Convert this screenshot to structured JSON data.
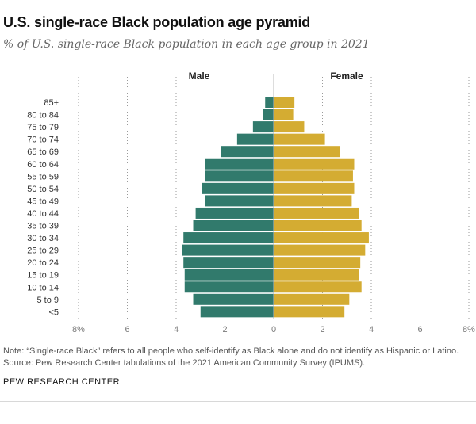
{
  "title": "U.S. single-race Black population age pyramid",
  "subtitle": "% of U.S. single-race Black population in each age group in 2021",
  "notes": [
    "Note: “Single-race Black” refers to all people who self-identify as Black alone and do not identify as Hispanic or Latino.",
    "Source: Pew Research Center tabulations of the 2021 American Community Survey (IPUMS)."
  ],
  "credit": "PEW RESEARCH CENTER",
  "chart_data": {
    "type": "bar",
    "orientation": "horizontal-pyramid",
    "categories": [
      "85+",
      "80 to 84",
      "75 to 79",
      "70 to 74",
      "65 to 69",
      "60 to 64",
      "55 to 59",
      "50 to 54",
      "45 to 49",
      "40 to 44",
      "35 to 39",
      "30 to 34",
      "25 to 29",
      "20 to 24",
      "15 to 19",
      "10 to 14",
      "5 to 9",
      "<5"
    ],
    "series": [
      {
        "name": "Male",
        "color": "#317a6c",
        "values": [
          0.35,
          0.45,
          0.85,
          1.5,
          2.15,
          2.8,
          2.8,
          2.95,
          2.8,
          3.2,
          3.3,
          3.7,
          3.75,
          3.7,
          3.65,
          3.65,
          3.3,
          3.0
        ]
      },
      {
        "name": "Female",
        "color": "#d4ac32",
        "values": [
          0.85,
          0.8,
          1.25,
          2.1,
          2.7,
          3.3,
          3.25,
          3.3,
          3.2,
          3.5,
          3.6,
          3.9,
          3.75,
          3.55,
          3.5,
          3.6,
          3.1,
          2.9
        ]
      }
    ],
    "xticks": [
      {
        "value": -8,
        "label": "8%"
      },
      {
        "value": -6,
        "label": "6"
      },
      {
        "value": -4,
        "label": "4"
      },
      {
        "value": -2,
        "label": "2"
      },
      {
        "value": 0,
        "label": "0"
      },
      {
        "value": 2,
        "label": "2"
      },
      {
        "value": 4,
        "label": "4"
      },
      {
        "value": 6,
        "label": "6"
      },
      {
        "value": 8,
        "label": "8%"
      }
    ],
    "xlim": [
      -8,
      8
    ],
    "grid": true,
    "legend_placement": "top"
  }
}
